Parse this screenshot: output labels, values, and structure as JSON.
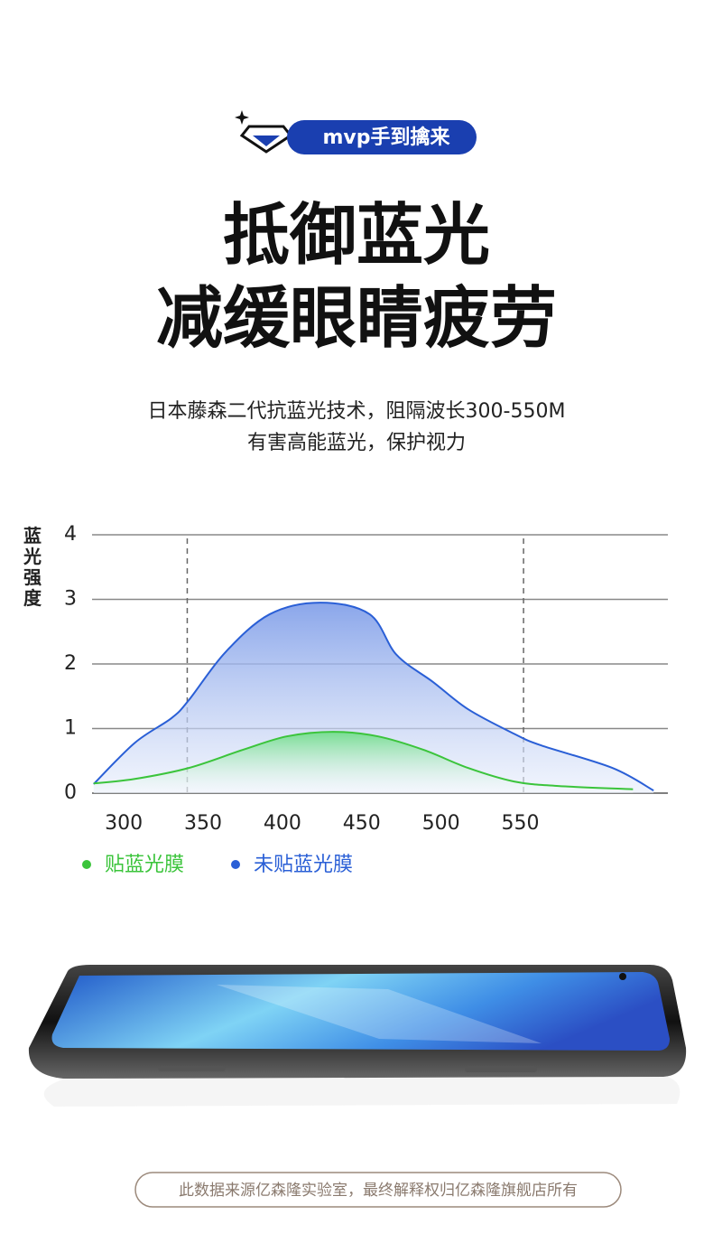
{
  "badge": "mvp手到擒来",
  "headline": [
    "抵御蓝光",
    "减缓眼睛疲劳"
  ],
  "subtitle": [
    "日本藤森二代抗蓝光技术，阻隔波长300-550M",
    "有害高能蓝光，保护视力"
  ],
  "chart_data": {
    "type": "area",
    "y_label": "蓝光强度",
    "xlim": [
      280,
      643
    ],
    "xticks": [
      300,
      350,
      400,
      450,
      500,
      550
    ],
    "ylim": [
      0,
      4
    ],
    "yticks": [
      0,
      1,
      2,
      3,
      4
    ],
    "reference_lines": [
      340,
      552
    ],
    "grid": true,
    "series": [
      {
        "name": "贴蓝光膜",
        "color": "#3bc43b",
        "x": [
          281,
          307,
          341,
          375,
          403,
          432,
          460,
          489,
          517,
          546,
          574,
          621
        ],
        "values": [
          0.15,
          0.22,
          0.39,
          0.67,
          0.88,
          0.95,
          0.88,
          0.67,
          0.39,
          0.18,
          0.11,
          0.06
        ]
      },
      {
        "name": "未贴蓝光膜",
        "color": "#2a5fd6",
        "x": [
          281,
          307,
          330,
          341,
          364,
          392,
          424,
          455,
          472,
          495,
          517,
          546,
          563,
          608,
          634
        ],
        "values": [
          0.14,
          0.78,
          1.16,
          1.44,
          2.18,
          2.77,
          2.95,
          2.77,
          2.14,
          1.72,
          1.3,
          0.92,
          0.74,
          0.39,
          0.04
        ]
      }
    ]
  },
  "footer": "此数据来源亿森隆实验室，最终解释权归亿森隆旗舰店所有"
}
